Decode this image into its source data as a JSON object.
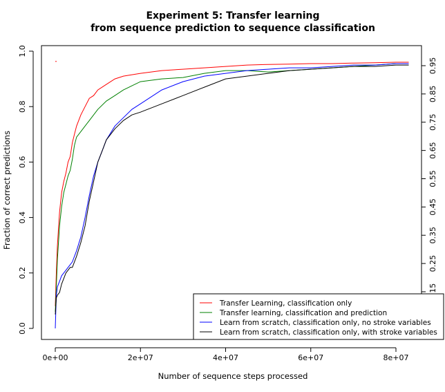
{
  "chart_data": {
    "type": "line",
    "title": "Experiment 5: Transfer learning",
    "subtitle": "from sequence prediction to sequence classification",
    "xlabel": "Number of sequence steps processed",
    "ylabel": "Fraction of correct predictions",
    "xlim": [
      0,
      83000000
    ],
    "ylim": [
      0,
      1.0
    ],
    "x_ticks": [
      0,
      20000000,
      40000000,
      60000000,
      80000000
    ],
    "x_tick_labels": [
      "0e+00",
      "2e+07",
      "4e+07",
      "6e+07",
      "8e+07"
    ],
    "y_ticks": [
      0.0,
      0.2,
      0.4,
      0.6,
      0.8,
      1.0
    ],
    "y_tick_labels": [
      "0.0",
      "0.2",
      "0.4",
      "0.6",
      "0.8",
      "1.0"
    ],
    "y2_ticks": [
      0.15,
      0.25,
      0.35,
      0.45,
      0.55,
      0.65,
      0.75,
      0.85,
      0.95
    ],
    "y2_tick_labels": [
      "0.15",
      "0.25",
      "0.35",
      "0.45",
      "0.55",
      "0.65",
      "0.75",
      "0.85",
      "0.95"
    ],
    "grid": false,
    "legend_position": "bottom-right",
    "series": [
      {
        "name": "Transfer Learning, classification only",
        "color": "#ff0000",
        "x": [
          0,
          250000,
          500000,
          1000000,
          1500000,
          2000000,
          2500000,
          3000000,
          3500000,
          4000000,
          4500000,
          5000000,
          6000000,
          7000000,
          8000000,
          9000000,
          10000000,
          12000000,
          14000000,
          16000000,
          18000000,
          20000000,
          25000000,
          30000000,
          35000000,
          40000000,
          45000000,
          50000000,
          55000000,
          60000000,
          65000000,
          70000000,
          75000000,
          80000000,
          83000000
        ],
        "y": [
          0.08,
          0.2,
          0.3,
          0.42,
          0.49,
          0.53,
          0.56,
          0.6,
          0.62,
          0.67,
          0.7,
          0.73,
          0.77,
          0.8,
          0.83,
          0.84,
          0.86,
          0.88,
          0.9,
          0.91,
          0.915,
          0.92,
          0.93,
          0.935,
          0.94,
          0.945,
          0.95,
          0.952,
          0.953,
          0.955,
          0.955,
          0.957,
          0.958,
          0.96,
          0.96
        ]
      },
      {
        "name": "Transfer learning, classification and prediction",
        "color": "#008000",
        "x": [
          0,
          250000,
          500000,
          1000000,
          1500000,
          2000000,
          2500000,
          3000000,
          3500000,
          4000000,
          4500000,
          5000000,
          6000000,
          7000000,
          8000000,
          9000000,
          10000000,
          12000000,
          14000000,
          16000000,
          18000000,
          20000000,
          25000000,
          30000000,
          35000000,
          40000000,
          45000000,
          50000000,
          55000000,
          60000000,
          65000000,
          70000000,
          75000000,
          80000000,
          83000000
        ],
        "y": [
          0.06,
          0.15,
          0.25,
          0.37,
          0.44,
          0.49,
          0.52,
          0.55,
          0.57,
          0.61,
          0.66,
          0.69,
          0.71,
          0.73,
          0.75,
          0.77,
          0.79,
          0.82,
          0.84,
          0.86,
          0.875,
          0.89,
          0.9,
          0.905,
          0.92,
          0.93,
          0.93,
          0.925,
          0.93,
          0.935,
          0.94,
          0.945,
          0.95,
          0.955,
          0.955
        ]
      },
      {
        "name": "Learn from scratch, classification only, no stroke variables",
        "color": "#0000ff",
        "x": [
          0,
          250000,
          500000,
          1000000,
          1500000,
          2000000,
          2500000,
          3000000,
          3500000,
          4000000,
          5000000,
          6000000,
          7000000,
          8000000,
          9000000,
          10000000,
          11000000,
          12000000,
          14000000,
          16000000,
          18000000,
          20000000,
          25000000,
          30000000,
          35000000,
          40000000,
          45000000,
          50000000,
          55000000,
          60000000,
          65000000,
          70000000,
          75000000,
          80000000,
          83000000
        ],
        "y": [
          0.0,
          0.12,
          0.15,
          0.17,
          0.19,
          0.2,
          0.21,
          0.22,
          0.23,
          0.24,
          0.28,
          0.33,
          0.4,
          0.48,
          0.55,
          0.6,
          0.64,
          0.68,
          0.73,
          0.76,
          0.79,
          0.81,
          0.86,
          0.89,
          0.91,
          0.92,
          0.93,
          0.935,
          0.94,
          0.94,
          0.945,
          0.95,
          0.95,
          0.955,
          0.955
        ]
      },
      {
        "name": "Learn from scratch, classification only, with stroke variables",
        "color": "#000000",
        "x": [
          0,
          250000,
          500000,
          1000000,
          1500000,
          2000000,
          2500000,
          3000000,
          3500000,
          4000000,
          5000000,
          6000000,
          7000000,
          8000000,
          9000000,
          10000000,
          11000000,
          12000000,
          14000000,
          16000000,
          18000000,
          20000000,
          25000000,
          30000000,
          35000000,
          40000000,
          45000000,
          50000000,
          55000000,
          60000000,
          65000000,
          70000000,
          75000000,
          80000000,
          83000000
        ],
        "y": [
          0.05,
          0.11,
          0.12,
          0.13,
          0.16,
          0.18,
          0.2,
          0.21,
          0.22,
          0.22,
          0.26,
          0.31,
          0.37,
          0.46,
          0.53,
          0.6,
          0.64,
          0.68,
          0.72,
          0.75,
          0.77,
          0.78,
          0.81,
          0.84,
          0.87,
          0.9,
          0.91,
          0.92,
          0.93,
          0.935,
          0.94,
          0.945,
          0.945,
          0.95,
          0.95
        ]
      }
    ],
    "annotations": [
      {
        "x": 0,
        "y": 0.963,
        "color": "#ff0000"
      }
    ]
  }
}
